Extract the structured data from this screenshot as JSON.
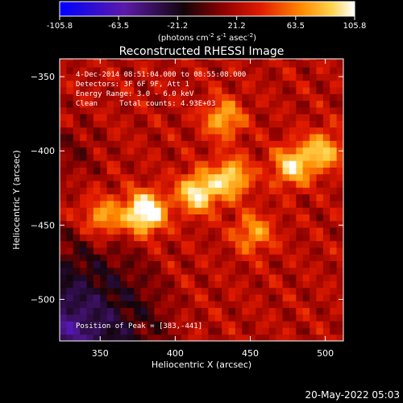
{
  "chart_data": {
    "type": "heatmap",
    "title": "Reconstructed RHESSI Image",
    "xlabel": "Heliocentric X (arcsec)",
    "ylabel": "Heliocentric Y (arcsec)",
    "xlim": [
      323,
      512
    ],
    "ylim": [
      -528,
      -338
    ],
    "x_ticks": [
      350,
      400,
      450,
      500
    ],
    "y_ticks": [
      -350,
      -400,
      -450,
      -500
    ],
    "colorbar": {
      "range": [
        -105.8,
        105.8
      ],
      "ticks": [
        "-105.8",
        "-63.5",
        "-21.2",
        "21.2",
        "63.5",
        "105.8"
      ],
      "colormap": "blue-purple-black-red-orange-yellow-white",
      "unit_prefix": "(photons cm",
      "unit_exp1": "-2",
      "unit_mid": " s",
      "unit_exp2": "-1",
      "unit_mid2": " asec",
      "unit_exp3": "-2",
      "unit_suffix": ")"
    },
    "annotations": [
      "4-Dec-2014 08:51:04.000 to 08:55:08.000",
      "Detectors: 3F 6F 9F, Att 1",
      "Energy Range: 3.0 - 6.0 keV",
      "Clean     Total counts: 4.93E+03"
    ],
    "peak_label": "Position of Peak = [383,-441]",
    "sources": [
      {
        "x": 380,
        "y": -441,
        "intensity": 105.8
      },
      {
        "x": 415,
        "y": -428,
        "intensity": 82
      },
      {
        "x": 437,
        "y": -418,
        "intensity": 70
      },
      {
        "x": 478,
        "y": -410,
        "intensity": 68
      },
      {
        "x": 498,
        "y": -400,
        "intensity": 60
      },
      {
        "x": 432,
        "y": -378,
        "intensity": 55
      },
      {
        "x": 352,
        "y": -445,
        "intensity": 50
      },
      {
        "x": 452,
        "y": -455,
        "intensity": 48
      }
    ]
  },
  "footer_date": "20-May-2022 05:03"
}
